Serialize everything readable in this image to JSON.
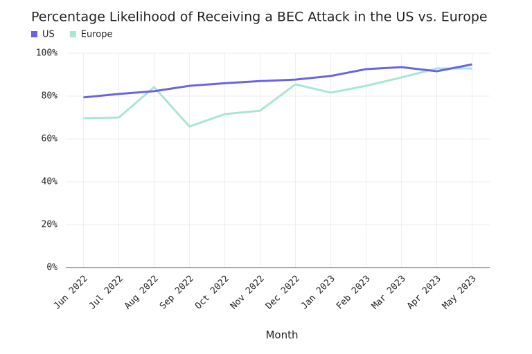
{
  "chart_data": {
    "type": "line",
    "title": "Percentage Likelihood of Receiving a BEC Attack in the US vs. Europe",
    "x_label": "Month",
    "categories": [
      "Jun 2022",
      "Jul 2022",
      "Aug 2022",
      "Sep 2022",
      "Oct 2022",
      "Nov 2022",
      "Dec 2022",
      "Jan 2023",
      "Feb 2023",
      "Mar 2023",
      "Apr 2023",
      "May 2023"
    ],
    "series": [
      {
        "name": "US",
        "color": "#6b63e6",
        "values": [
          79.4,
          81,
          82.3,
          84.8,
          86,
          87,
          87.7,
          89.4,
          92.6,
          93.5,
          91.6,
          94.8
        ]
      },
      {
        "name": "Europe",
        "color": "#a8e6d6",
        "values": [
          69.7,
          70,
          84.2,
          65.8,
          71.6,
          73.2,
          85.5,
          81.6,
          84.8,
          88.7,
          92.9,
          92.9
        ]
      }
    ],
    "ylim": [
      0,
      100
    ],
    "yticks": [
      {
        "value": 0,
        "label": "0%"
      },
      {
        "value": 20,
        "label": "20%"
      },
      {
        "value": 40,
        "label": "40%"
      },
      {
        "value": 60,
        "label": "60%"
      },
      {
        "value": 80,
        "label": "80%"
      },
      {
        "value": 100,
        "label": "100%"
      }
    ],
    "grid": true
  }
}
